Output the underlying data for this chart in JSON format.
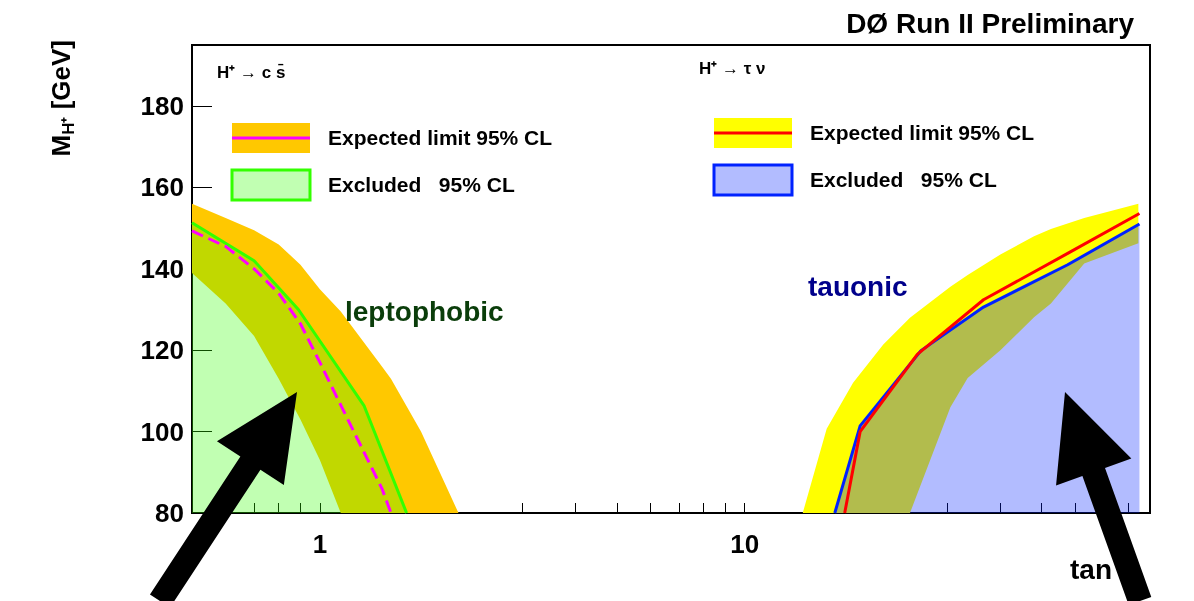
{
  "chart_data": {
    "type": "line",
    "title": "DØ Run II Preliminary",
    "xlabel": "tan",
    "ylabel": "M$_{H⁺}$ [GeV]",
    "log": "x",
    "xlim": [
      0.5,
      90
    ],
    "ylim": [
      80,
      195
    ],
    "xticks": [
      {
        "value": 0.6,
        "label": null
      },
      {
        "value": 0.7,
        "label": null
      },
      {
        "value": 0.8,
        "label": null
      },
      {
        "value": 0.9,
        "label": null
      },
      1,
      {
        "value": 2,
        "label": null
      },
      {
        "value": 3,
        "label": null
      },
      {
        "value": 4,
        "label": null
      },
      {
        "value": 5,
        "label": null
      },
      {
        "value": 6,
        "label": null
      },
      {
        "value": 7,
        "label": null
      },
      {
        "value": 8,
        "label": null
      },
      {
        "value": 9,
        "label": null
      },
      10,
      {
        "value": 20,
        "label": null
      },
      {
        "value": 30,
        "label": null
      },
      {
        "value": 40,
        "label": null
      },
      {
        "value": 50,
        "label": null
      },
      {
        "value": 60,
        "label": null
      },
      {
        "value": 70,
        "label": null
      },
      {
        "value": 80,
        "label": null
      }
    ],
    "yticks": [
      80,
      100,
      120,
      140,
      160,
      180
    ],
    "grid": false,
    "legend": "top",
    "annotations": [
      "H⁺ → c s̄",
      "H⁺ → τ ν",
      "leptophobic",
      "tauonic"
    ],
    "series": [
      {
        "type": "area",
        "color": "#ffc800",
        "x": [
          0.5,
          0.6,
          0.7,
          0.8,
          0.9,
          1.0,
          1.12,
          1.4,
          1.47,
          1.73,
          2.12
        ],
        "values": [
          null,
          null,
          null,
          null,
          null,
          null,
          null,
          null,
          null,
          null,
          null
        ],
        "lower": [
          139,
          131.5,
          123.5,
          113,
          103,
          93,
          80,
          80,
          80,
          80,
          80
        ],
        "upper": [
          156,
          152.5,
          149.5,
          146,
          141,
          135,
          129.5,
          116,
          113,
          100,
          80
        ]
      },
      {
        "name": "Expected limit 95% CL",
        "color": "#ff00ff",
        "line_style": "dashed",
        "x": [
          0.5,
          0.6,
          0.7,
          0.8,
          0.9,
          1.0,
          1.12,
          1.4,
          1.47
        ],
        "values": [
          149.3,
          145.5,
          140,
          134,
          126.5,
          117,
          106.5,
          86,
          80
        ]
      },
      {
        "type": "area",
        "name": "Excluded   95% CL",
        "color": "#33ff00",
        "x": [
          0.5,
          0.7,
          0.89,
          1.27,
          1.6
        ],
        "values": [
          151.3,
          142,
          130,
          106.4,
          80
        ]
      },
      {
        "type": "area",
        "color": "#ffff00",
        "x": [
          13.7,
          15.6,
          18,
          21.2,
          24.5,
          30.5,
          33.5,
          40,
          48,
          52.6,
          63,
          84.5
        ],
        "values": [
          null,
          null,
          null,
          null,
          null,
          null,
          null,
          null,
          null,
          null,
          null,
          null
        ],
        "lower": [
          80,
          80,
          80,
          80,
          80,
          106,
          113.2,
          120,
          128.1,
          131.5,
          141.3,
          146.3
        ],
        "upper": [
          80,
          100.7,
          112,
          121.4,
          128,
          135.6,
          138.5,
          143.5,
          148,
          149.8,
          152.5,
          156
        ]
      },
      {
        "name": "Expected limit 95% CL",
        "color": "#ff0000",
        "line_style": "solid",
        "x": [
          17.2,
          18.7,
          25.5,
          36.5,
          57.6,
          85
        ],
        "values": [
          80,
          100,
          119,
          132.4,
          143.8,
          153.6
        ]
      },
      {
        "type": "area",
        "name": "Excluded   95% CL",
        "color": "#0022ff",
        "x": [
          16.3,
          18.7,
          26,
          36.5,
          57.6,
          85
        ],
        "values": [
          80,
          101.4,
          119.9,
          130.6,
          141,
          151
        ]
      }
    ]
  }
}
